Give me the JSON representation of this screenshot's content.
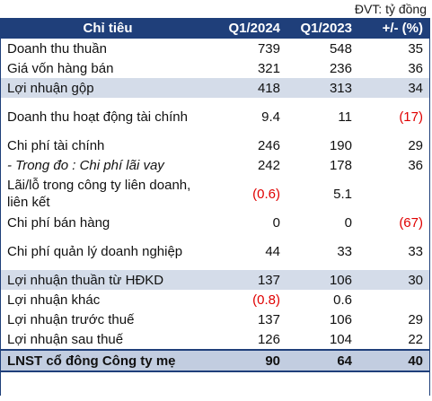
{
  "unit_label": "ĐVT: tỷ đồng",
  "headers": [
    "Chỉ tiêu",
    "Q1/2024",
    "Q1/2023",
    "+/- (%)"
  ],
  "rows": [
    {
      "label": "Doanh thu thuần",
      "q1_2024": "739",
      "q1_2023": "548",
      "change": "35"
    },
    {
      "label": "Giá vốn hàng bán",
      "q1_2024": "321",
      "q1_2023": "236",
      "change": "36"
    },
    {
      "label": "Lợi nhuận gộp",
      "q1_2024": "418",
      "q1_2023": "313",
      "change": "34"
    },
    {
      "label": "Doanh thu hoạt động tài chính",
      "q1_2024": "9.4",
      "q1_2023": "11",
      "change": "(17)"
    },
    {
      "label": "Chi phí tài chính",
      "q1_2024": "246",
      "q1_2023": "190",
      "change": "29"
    },
    {
      "label": "- Trong đo : Chi phí lãi vay",
      "q1_2024": "242",
      "q1_2023": "178",
      "change": "36"
    },
    {
      "label": "Lãi/lỗ trong công ty liên doanh, liên kết",
      "q1_2024": "(0.6)",
      "q1_2023": "5.1",
      "change": ""
    },
    {
      "label": "Chi phí bán hàng",
      "q1_2024": "0",
      "q1_2023": "0",
      "change": "(67)"
    },
    {
      "label": "Chi phí quản lý doanh nghiệp",
      "q1_2024": "44",
      "q1_2023": "33",
      "change": "33"
    },
    {
      "label": "Lợi nhuận thuần từ HĐKD",
      "q1_2024": "137",
      "q1_2023": "106",
      "change": "30"
    },
    {
      "label": "Lợi nhuận khác",
      "q1_2024": "(0.8)",
      "q1_2023": "0.6",
      "change": ""
    },
    {
      "label": "Lợi nhuận trước thuế",
      "q1_2024": "137",
      "q1_2023": "106",
      "change": "29"
    },
    {
      "label": "Lợi nhuận sau thuế",
      "q1_2024": "126",
      "q1_2023": "104",
      "change": "22"
    },
    {
      "label": "LNST cổ đông Công ty mẹ",
      "q1_2024": "90",
      "q1_2023": "64",
      "change": "40"
    }
  ],
  "colors": {
    "header_bg": "#1f3f7a",
    "highlight_bg": "#d4dce9",
    "total_bg": "#c2cde0",
    "negative": "#e00000"
  }
}
